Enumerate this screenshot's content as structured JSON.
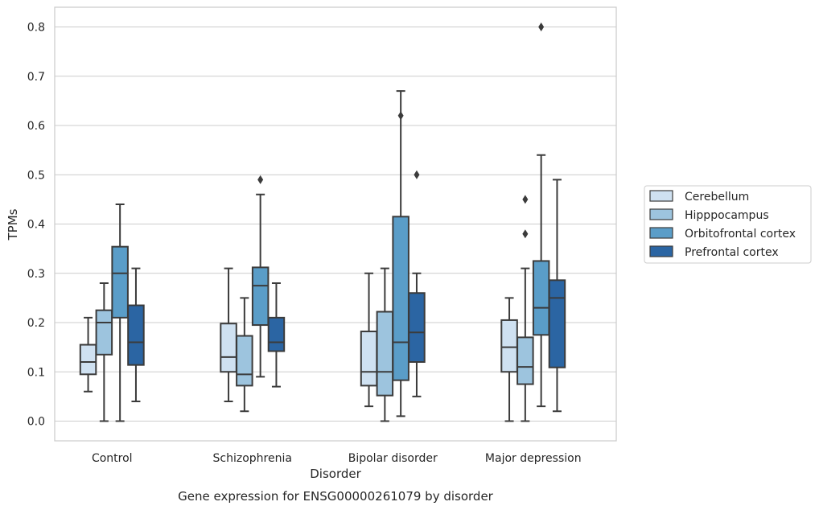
{
  "chart_data": {
    "type": "box",
    "title": "",
    "caption": "Gene expression for ENSG00000261079 by disorder",
    "xlabel": "Disorder",
    "ylabel": "TPMs",
    "ylim": [
      -0.04,
      0.84
    ],
    "yticks": [
      0.0,
      0.1,
      0.2,
      0.3,
      0.4,
      0.5,
      0.6,
      0.7,
      0.8
    ],
    "ytick_labels": [
      "0.0",
      "0.1",
      "0.2",
      "0.3",
      "0.4",
      "0.5",
      "0.6",
      "0.7",
      "0.8"
    ],
    "grid": "horizontal",
    "legend_position": "right",
    "categories": [
      "Control",
      "Schizophrenia",
      "Bipolar disorder",
      "Major depression"
    ],
    "series": [
      {
        "name": "Cerebellum",
        "color": "#cfe1f1",
        "boxes": [
          {
            "whislo": 0.06,
            "q1": 0.095,
            "med": 0.12,
            "q3": 0.155,
            "whishi": 0.21,
            "fliers": []
          },
          {
            "whislo": 0.04,
            "q1": 0.1,
            "med": 0.13,
            "q3": 0.198,
            "whishi": 0.31,
            "fliers": []
          },
          {
            "whislo": 0.03,
            "q1": 0.072,
            "med": 0.1,
            "q3": 0.182,
            "whishi": 0.3,
            "fliers": []
          },
          {
            "whislo": 0.0,
            "q1": 0.1,
            "med": 0.15,
            "q3": 0.205,
            "whishi": 0.25,
            "fliers": []
          }
        ]
      },
      {
        "name": "Hipppocampus",
        "color": "#9dc4de",
        "boxes": [
          {
            "whislo": 0.0,
            "q1": 0.135,
            "med": 0.2,
            "q3": 0.225,
            "whishi": 0.28,
            "fliers": []
          },
          {
            "whislo": 0.02,
            "q1": 0.072,
            "med": 0.095,
            "q3": 0.173,
            "whishi": 0.25,
            "fliers": []
          },
          {
            "whislo": 0.0,
            "q1": 0.052,
            "med": 0.1,
            "q3": 0.222,
            "whishi": 0.31,
            "fliers": []
          },
          {
            "whislo": 0.0,
            "q1": 0.075,
            "med": 0.11,
            "q3": 0.17,
            "whishi": 0.31,
            "fliers": [
              0.38,
              0.45
            ]
          }
        ]
      },
      {
        "name": "Orbitofrontal cortex",
        "color": "#5a9dc8",
        "boxes": [
          {
            "whislo": 0.0,
            "q1": 0.21,
            "med": 0.3,
            "q3": 0.354,
            "whishi": 0.44,
            "fliers": []
          },
          {
            "whislo": 0.09,
            "q1": 0.195,
            "med": 0.275,
            "q3": 0.312,
            "whishi": 0.46,
            "fliers": [
              0.49
            ]
          },
          {
            "whislo": 0.01,
            "q1": 0.083,
            "med": 0.16,
            "q3": 0.415,
            "whishi": 0.67,
            "fliers": [
              0.62
            ]
          },
          {
            "whislo": 0.03,
            "q1": 0.175,
            "med": 0.23,
            "q3": 0.325,
            "whishi": 0.54,
            "fliers": [
              0.8
            ]
          }
        ]
      },
      {
        "name": "Prefrontal cortex",
        "color": "#2b65a3",
        "boxes": [
          {
            "whislo": 0.04,
            "q1": 0.114,
            "med": 0.16,
            "q3": 0.235,
            "whishi": 0.31,
            "fliers": []
          },
          {
            "whislo": 0.07,
            "q1": 0.142,
            "med": 0.16,
            "q3": 0.21,
            "whishi": 0.28,
            "fliers": []
          },
          {
            "whislo": 0.05,
            "q1": 0.12,
            "med": 0.18,
            "q3": 0.26,
            "whishi": 0.3,
            "fliers": [
              0.5
            ]
          },
          {
            "whislo": 0.02,
            "q1": 0.109,
            "med": 0.25,
            "q3": 0.286,
            "whishi": 0.49,
            "fliers": []
          }
        ]
      }
    ]
  }
}
